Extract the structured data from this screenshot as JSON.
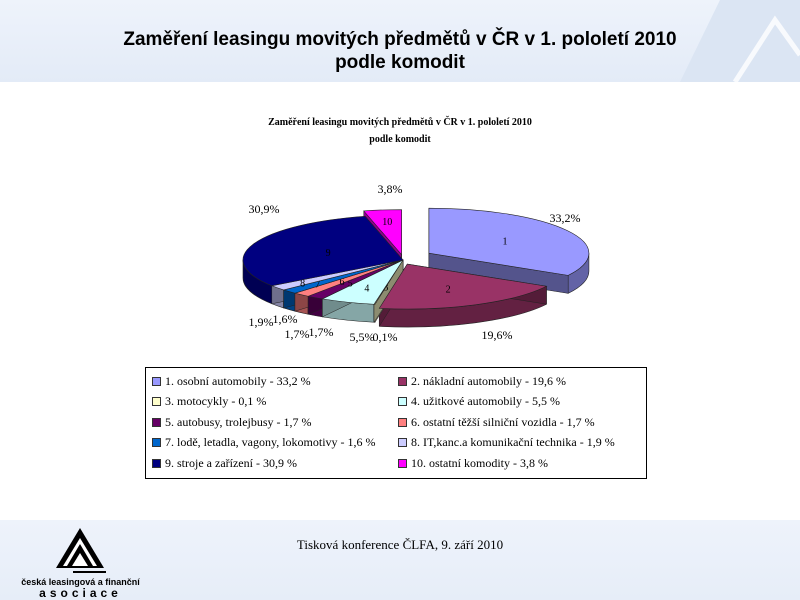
{
  "slide": {
    "title_line1": "Zaměření leasingu movitých předmětů v ČR v 1. pololetí 2010",
    "title_line2": "podle komodit"
  },
  "footer": {
    "text": "Tisková konference ČLFA, 9. září 2010",
    "logo_line1": "česká leasingová a finanční",
    "logo_line2": "asociace"
  },
  "chart_data": {
    "type": "pie",
    "title": "Zaměření leasingu movitých předmětů v ČR v 1. pololetí 2010",
    "subtitle": "podle komodit",
    "legend_position": "bottom",
    "slices": [
      {
        "id": "1",
        "value": 33.2,
        "label": "33,2%",
        "legend": "1. osobní automobily - 33,2 %",
        "color": "#9999ff"
      },
      {
        "id": "2",
        "value": 19.6,
        "label": "19,6%",
        "legend": "2. nákladní automobily - 19,6 %",
        "color": "#993366"
      },
      {
        "id": "3",
        "value": 0.1,
        "label": "0,1%",
        "legend": "3. motocykly - 0,1 %",
        "color": "#ffffcc"
      },
      {
        "id": "4",
        "value": 5.5,
        "label": "5,5%",
        "legend": "4. užitkové automobily - 5,5 %",
        "color": "#ccffff"
      },
      {
        "id": "5",
        "value": 1.7,
        "label": "1,7%",
        "legend": "5. autobusy, trolejbusy - 1,7 %",
        "color": "#660066"
      },
      {
        "id": "6",
        "value": 1.7,
        "label": "1,7%",
        "legend": "6. ostatní těžší silniční vozidla - 1,7 %",
        "color": "#ff8080"
      },
      {
        "id": "7",
        "value": 1.6,
        "label": "1,6%",
        "legend": "7. lodě, letadla, vagony, lokomotivy - 1,6 %",
        "color": "#0066cc"
      },
      {
        "id": "8",
        "value": 1.9,
        "label": "1,9%",
        "legend": "8. IT,kanc.a komunikační technika - 1,9 %",
        "color": "#ccccff"
      },
      {
        "id": "9",
        "value": 30.9,
        "label": "30,9%",
        "legend": "9. stroje a zařízení - 30,9 %",
        "color": "#000080"
      },
      {
        "id": "10",
        "value": 3.8,
        "label": "3,8%",
        "legend": "10. ostatní komodity - 3,8 %",
        "color": "#ff00ff"
      }
    ]
  }
}
